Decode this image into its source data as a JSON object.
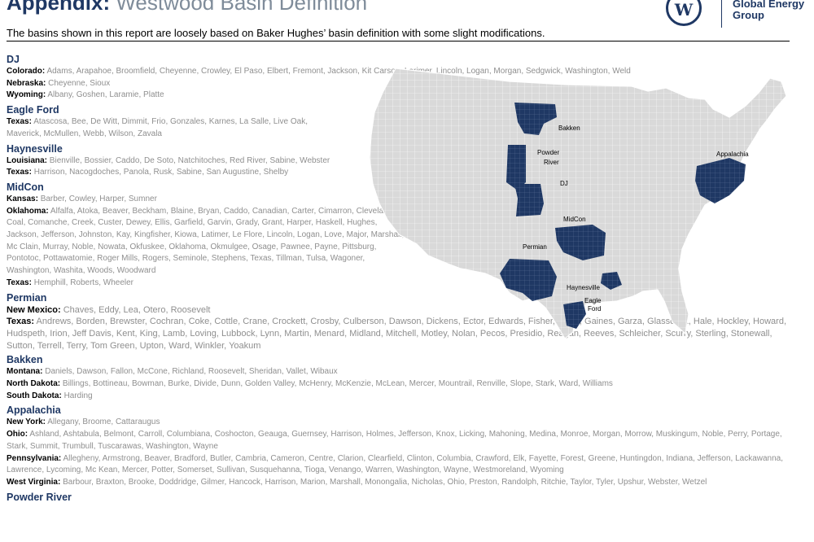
{
  "header": {
    "title_bold": "Appendix:",
    "title_light": "Westwood Basin Definition",
    "logo_letter": "W",
    "brand_line1": "Global Energy",
    "brand_line2": "Group",
    "subtitle": "The basins shown in this report are loosely based on Baker Hughes’ basin definition with some slight modifications."
  },
  "colors": {
    "navy": "#1f3864",
    "gray_text": "#8f8f8f",
    "map_fill": "#d9d9d9",
    "basin_fill": "#1f3864"
  },
  "basins": {
    "dj": {
      "name": "DJ",
      "colorado_label": "Colorado:",
      "colorado": "Adams, Arapahoe, Broomfield, Cheyenne, Crowley, El Paso, Elbert, Fremont, Jackson, Kit Carson, Larimer, Lincoln, Logan, Morgan, Sedgwick, Washington, Weld",
      "nebraska_label": "Nebraska:",
      "nebraska": "Cheyenne, Sioux",
      "wyoming_label": "Wyoming:",
      "wyoming": "Albany, Goshen, Laramie, Platte"
    },
    "eagleford": {
      "name": "Eagle Ford",
      "texas_label": "Texas:",
      "texas": "Atascosa, Bee, De Witt, Dimmit, Frio, Gonzales, Karnes, La Salle, Live Oak, Maverick, McMullen, Webb, Wilson, Zavala"
    },
    "haynesville": {
      "name": "Haynesville",
      "louisiana_label": "Louisiana:",
      "louisiana": "Bienville, Bossier, Caddo, De Soto, Natchitoches, Red River, Sabine, Webster",
      "texas_label": "Texas:",
      "texas": "Harrison, Nacogdoches, Panola, Rusk, Sabine, San Augustine, Shelby"
    },
    "midcon": {
      "name": "MidCon",
      "kansas_label": "Kansas:",
      "kansas": "Barber, Cowley, Harper, Sumner",
      "oklahoma_label": "Oklahoma:",
      "oklahoma": "Alfalfa, Atoka, Beaver, Beckham, Blaine, Bryan, Caddo, Canadian, Carter, Cimarron, Cleveland, Coal, Comanche, Creek, Custer, Dewey, Ellis, Garfield, Garvin, Grady, Grant, Harper, Haskell, Hughes, Jackson, Jefferson, Johnston, Kay, Kingfisher, Kiowa, Latimer, Le Flore, Lincoln, Logan, Love, Major, Marshall, Mc Clain, Murray, Noble, Nowata, Okfuskee, Oklahoma, Okmulgee, Osage, Pawnee, Payne, Pittsburg, Pontotoc, Pottawatomie, Roger Mills, Rogers, Seminole, Stephens, Texas, Tillman, Tulsa, Wagoner, Washington, Washita, Woods, Woodward",
      "texas_label": "Texas:",
      "texas": "Hemphill, Roberts, Wheeler"
    },
    "permian": {
      "name": "Permian",
      "newmexico_label": "New Mexico:",
      "newmexico": "Chaves, Eddy, Lea, Otero, Roosevelt",
      "texas_label": "Texas:",
      "texas": "Andrews, Borden, Brewster, Cochran, Coke, Cottle, Crane, Crockett, Crosby, Culberson, Dawson, Dickens, Ector, Edwards, Fisher, Floyd, Gaines, Garza, Glasscock, Hale, Hockley, Howard, Hudspeth, Irion, Jeff Davis, Kent, King, Lamb, Loving, Lubbock, Lynn, Martin, Menard, Midland, Mitchell, Motley, Nolan, Pecos, Presidio, Reagan, Reeves, Schleicher, Scurry, Sterling, Stonewall, Sutton, Terrell, Terry, Tom Green, Upton, Ward, Winkler, Yoakum"
    },
    "bakken": {
      "name": "Bakken",
      "montana_label": "Montana:",
      "montana": "Daniels, Dawson, Fallon, McCone, Richland, Roosevelt, Sheridan, Vallet, Wibaux",
      "northdakota_label": "North Dakota:",
      "northdakota": "Billings, Bottineau, Bowman, Burke, Divide, Dunn, Golden Valley, McHenry, McKenzie, McLean, Mercer, Mountrail, Renville, Slope, Stark, Ward, Williams",
      "southdakota_label": "South Dakota:",
      "southdakota": "Harding"
    },
    "appalachia": {
      "name": "Appalachia",
      "newyork_label": "New York:",
      "newyork": "Allegany, Broome, Cattaraugus",
      "ohio_label": "Ohio:",
      "ohio": "Ashland, Ashtabula, Belmont, Carroll, Columbiana, Coshocton, Geauga, Guernsey, Harrison, Holmes, Jefferson, Knox, Licking, Mahoning, Medina, Monroe, Morgan, Morrow, Muskingum, Noble, Perry, Portage, Stark, Summit, Trumbull, Tuscarawas, Washington, Wayne",
      "pennsylvania_label": "Pennsylvania:",
      "pennsylvania": "Allegheny, Armstrong, Beaver, Bradford, Butler, Cambria, Cameron, Centre, Clarion, Clearfield, Clinton, Columbia, Crawford, Elk, Fayette, Forest, Greene, Huntingdon, Indiana, Jefferson, Lackawanna, Lawrence, Lycoming, Mc Kean, Mercer, Potter, Somerset, Sullivan, Susquehanna, Tioga, Venango, Warren, Washington, Wayne, Westmoreland, Wyoming",
      "westvirginia_label": "West Virginia:",
      "westvirginia": "Barbour, Braxton, Brooke, Doddridge, Gilmer, Hancock, Harrison, Marion, Marshall, Monongalia, Nicholas, Ohio, Preston, Randolph, Ritchie, Taylor, Tyler, Upshur, Webster, Wetzel"
    },
    "powderriver": {
      "name": "Powder River"
    }
  },
  "map": {
    "labels": {
      "bakken": "Bakken",
      "powder": "Powder",
      "river": "River",
      "dj": "DJ",
      "midcon": "MidCon",
      "permian": "Permian",
      "haynesville": "Haynesville",
      "eagle": "Eagle",
      "ford": "Ford",
      "appalachia": "Appalachia"
    }
  }
}
